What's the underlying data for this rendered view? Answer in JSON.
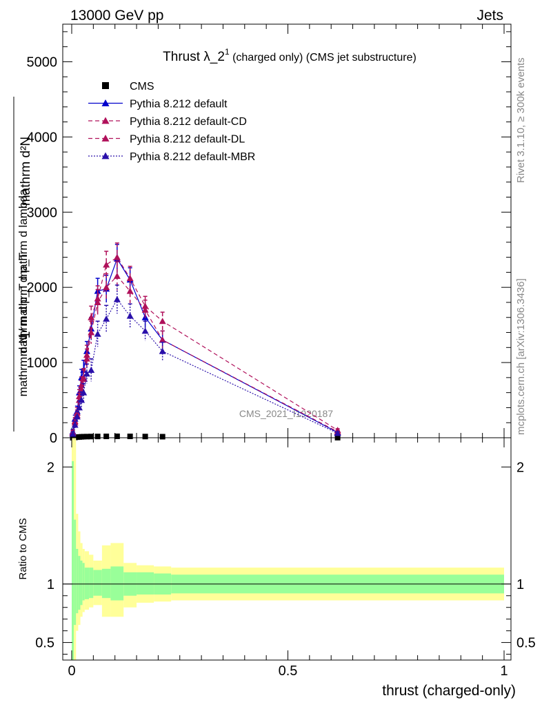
{
  "header": {
    "energy_label": "13000 GeV pp",
    "process_label": "Jets"
  },
  "side_labels": {
    "rivet": "Rivet 3.1.10, ≥ 300k events",
    "mcplots": "mcplots.cern.ch [arXiv:1306.3436]"
  },
  "watermark": "CMS_2021_I1920187",
  "chart_data": [
    {
      "type": "line",
      "title_main": "Thrust λ_2",
      "title_sup": "1",
      "title_rest": " (charged only) (CMS jet substructure)",
      "ylabel_numerator": "mathrm d²N",
      "ylabel_denominator": "mathrm d p_T mathrm d lambda",
      "ylabel_prefix_num": "1",
      "ylabel_prefix_den": "mathrm d N / mathrm d p_T",
      "xlim": [
        0,
        1
      ],
      "ylim": [
        0,
        5500
      ],
      "y_ticks": [
        0,
        1000,
        2000,
        3000,
        4000,
        5000
      ],
      "y_tick_labels": [
        "0",
        "1000",
        "2000",
        "3000",
        "4000",
        "5000"
      ],
      "legend_position": "top-left",
      "series": [
        {
          "name": "CMS",
          "style": "data",
          "color": "#000000",
          "x": [
            0.0025,
            0.0075,
            0.0125,
            0.0175,
            0.0225,
            0.0275,
            0.035,
            0.045,
            0.06,
            0.08,
            0.105,
            0.135,
            0.17,
            0.21,
            0.615
          ],
          "y": [
            0,
            4,
            8,
            10,
            12,
            14,
            15,
            16,
            17,
            18,
            19,
            18,
            16,
            14,
            1
          ]
        },
        {
          "name": "Pythia 8.212 default",
          "style": "solid",
          "color": "#0000cc",
          "x": [
            0.0025,
            0.0075,
            0.0125,
            0.0175,
            0.0225,
            0.0275,
            0.035,
            0.045,
            0.06,
            0.08,
            0.105,
            0.135,
            0.17,
            0.21,
            0.615
          ],
          "y": [
            80,
            250,
            350,
            600,
            800,
            900,
            1150,
            1450,
            1950,
            1980,
            2380,
            2100,
            1600,
            1300,
            70
          ],
          "err": [
            30,
            50,
            70,
            90,
            110,
            130,
            130,
            150,
            170,
            180,
            190,
            160,
            130,
            120,
            20
          ]
        },
        {
          "name": "Pythia 8.212 default-CD",
          "style": "dashed",
          "color": "#b0105a",
          "x": [
            0.0025,
            0.0075,
            0.0125,
            0.0175,
            0.0225,
            0.0275,
            0.035,
            0.045,
            0.06,
            0.08,
            0.105,
            0.135,
            0.17,
            0.21,
            0.615
          ],
          "y": [
            70,
            220,
            330,
            550,
            700,
            800,
            1100,
            1600,
            1850,
            2300,
            2400,
            2120,
            1750,
            1550,
            100
          ],
          "err": [
            30,
            50,
            70,
            90,
            110,
            120,
            130,
            150,
            170,
            180,
            190,
            160,
            130,
            120,
            20
          ]
        },
        {
          "name": "Pythia 8.212 default-DL",
          "style": "dashed",
          "color": "#b0105a",
          "x": [
            0.0025,
            0.0075,
            0.0125,
            0.0175,
            0.0225,
            0.0275,
            0.035,
            0.045,
            0.06,
            0.08,
            0.105,
            0.135,
            0.17,
            0.21,
            0.615
          ],
          "y": [
            60,
            200,
            300,
            500,
            650,
            780,
            1050,
            1400,
            1800,
            2000,
            2150,
            1950,
            1700,
            1300,
            80
          ],
          "err": [
            30,
            50,
            70,
            90,
            110,
            120,
            130,
            150,
            170,
            180,
            190,
            160,
            130,
            120,
            20
          ]
        },
        {
          "name": "Pythia 8.212 default-MBR",
          "style": "dotted",
          "color": "#2a10aa",
          "x": [
            0.0025,
            0.0075,
            0.0125,
            0.0175,
            0.0225,
            0.0275,
            0.035,
            0.045,
            0.06,
            0.08,
            0.105,
            0.135,
            0.17,
            0.21,
            0.615
          ],
          "y": [
            50,
            170,
            280,
            400,
            500,
            600,
            850,
            900,
            1380,
            1580,
            1840,
            1620,
            1420,
            1150,
            60
          ],
          "err": [
            30,
            50,
            70,
            90,
            110,
            120,
            130,
            150,
            170,
            180,
            190,
            160,
            130,
            120,
            20
          ]
        }
      ]
    },
    {
      "type": "area",
      "ylabel": "Ratio to CMS",
      "xlabel": "thrust (charged-only)",
      "xlim": [
        0,
        1
      ],
      "ylim": [
        0.35,
        2.25
      ],
      "x_ticks": [
        0,
        0.5,
        1
      ],
      "x_tick_labels": [
        "0",
        "0.5",
        "1"
      ],
      "y_ticks": [
        0.5,
        1,
        2
      ],
      "y_tick_labels": [
        "0.5",
        "1",
        "2"
      ],
      "reference_line": 1,
      "bands": {
        "bin_edges": [
          0,
          0.005,
          0.01,
          0.015,
          0.02,
          0.025,
          0.03,
          0.04,
          0.05,
          0.07,
          0.09,
          0.12,
          0.15,
          0.19,
          0.23,
          1.0
        ],
        "stat_syst_lo": [
          0.0,
          0.3,
          0.6,
          0.65,
          0.72,
          0.76,
          0.78,
          0.8,
          0.82,
          0.72,
          0.72,
          0.8,
          0.84,
          0.85,
          0.86
        ],
        "stat_syst_hi": [
          2.6,
          2.3,
          1.6,
          1.45,
          1.35,
          1.3,
          1.28,
          1.25,
          1.2,
          1.33,
          1.35,
          1.18,
          1.16,
          1.15,
          1.14
        ],
        "stat_lo": [
          0.3,
          0.65,
          0.75,
          0.78,
          0.82,
          0.86,
          0.87,
          0.88,
          0.9,
          0.88,
          0.86,
          0.9,
          0.91,
          0.91,
          0.92
        ],
        "stat_hi": [
          2.05,
          1.55,
          1.3,
          1.24,
          1.2,
          1.18,
          1.14,
          1.14,
          1.12,
          1.13,
          1.15,
          1.1,
          1.1,
          1.09,
          1.08
        ],
        "outer_color": "#ffff99",
        "inner_color": "#99ff99"
      }
    }
  ]
}
